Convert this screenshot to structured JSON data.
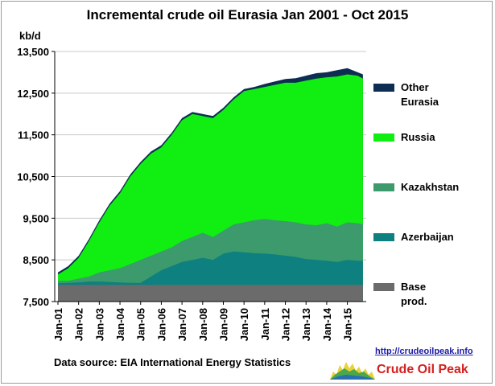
{
  "chart_data": {
    "type": "area",
    "title": "Incremental crude oil Eurasia  Jan 2001 - Oct 2015",
    "ylabel": "kb/d",
    "xlabel": "",
    "ylim": [
      7500,
      13500
    ],
    "yticks": [
      7500,
      8500,
      9500,
      10500,
      11500,
      12500,
      13500
    ],
    "ytick_labels": [
      "7,500",
      "8,500",
      "9,500",
      "10,500",
      "11,500",
      "12,500",
      "13,500"
    ],
    "x_tick_labels": [
      "Jan-01",
      "Jan-02",
      "Jan-03",
      "Jan-04",
      "Jan-05",
      "Jan-06",
      "Jan-07",
      "Jan-08",
      "Jan-09",
      "Jan-10",
      "Jan-11",
      "Jan-12",
      "Jan-13",
      "Jan-14",
      "Jan-15"
    ],
    "x": [
      "Jan-01",
      "Jul-01",
      "Jan-02",
      "Jul-02",
      "Jan-03",
      "Jul-03",
      "Jan-04",
      "Jul-04",
      "Jan-05",
      "Jul-05",
      "Jan-06",
      "Jul-06",
      "Jan-07",
      "Jul-07",
      "Jan-08",
      "Jul-08",
      "Jan-09",
      "Jul-09",
      "Jan-10",
      "Jul-10",
      "Jan-11",
      "Jul-11",
      "Jan-12",
      "Jul-12",
      "Jan-13",
      "Jul-13",
      "Jan-14",
      "Jul-14",
      "Jan-15",
      "Jul-15",
      "Oct-15"
    ],
    "stacking": "cumulative",
    "grid": "horizontal",
    "legend_position": "right",
    "series": [
      {
        "name": "Base prod.",
        "color": "#6b6b6b",
        "values": [
          7900,
          7900,
          7900,
          7900,
          7900,
          7900,
          7900,
          7900,
          7900,
          7900,
          7900,
          7900,
          7900,
          7900,
          7900,
          7900,
          7900,
          7900,
          7900,
          7900,
          7900,
          7900,
          7900,
          7900,
          7900,
          7900,
          7900,
          7900,
          7900,
          7900,
          7900
        ]
      },
      {
        "name": "Azerbaijan",
        "color": "#0e8080",
        "values": [
          7940,
          7950,
          7960,
          7980,
          7980,
          7970,
          7960,
          7950,
          7950,
          8100,
          8250,
          8350,
          8450,
          8500,
          8550,
          8500,
          8650,
          8700,
          8680,
          8660,
          8650,
          8630,
          8600,
          8570,
          8520,
          8500,
          8480,
          8450,
          8500,
          8480,
          8480
        ]
      },
      {
        "name": "Kazakhstan",
        "color": "#3c9a6c",
        "values": [
          8000,
          8000,
          8050,
          8100,
          8200,
          8250,
          8300,
          8400,
          8500,
          8600,
          8700,
          8800,
          8950,
          9050,
          9150,
          9050,
          9200,
          9350,
          9400,
          9450,
          9480,
          9450,
          9430,
          9400,
          9350,
          9330,
          9380,
          9300,
          9400,
          9380,
          9350
        ]
      },
      {
        "name": "Russia",
        "color": "#11ee11",
        "values": [
          8150,
          8300,
          8550,
          8950,
          9400,
          9800,
          10100,
          10500,
          10800,
          11050,
          11200,
          11500,
          11850,
          12000,
          11950,
          11900,
          12100,
          12350,
          12550,
          12600,
          12650,
          12700,
          12750,
          12750,
          12800,
          12850,
          12880,
          12900,
          12950,
          12920,
          12850
        ]
      },
      {
        "name": "Other\nEurasia",
        "color": "#0e2d52",
        "values": [
          8200,
          8350,
          8600,
          9000,
          9450,
          9850,
          10150,
          10550,
          10850,
          11100,
          11250,
          11550,
          11900,
          12050,
          12000,
          11950,
          12150,
          12400,
          12600,
          12650,
          12720,
          12780,
          12840,
          12860,
          12920,
          12980,
          13000,
          13050,
          13100,
          13000,
          12950
        ]
      }
    ]
  },
  "footer": {
    "source": "Data source: EIA International Energy Statistics",
    "link": "http://crudeoilpeak.info",
    "brand": "Crude Oil Peak"
  }
}
